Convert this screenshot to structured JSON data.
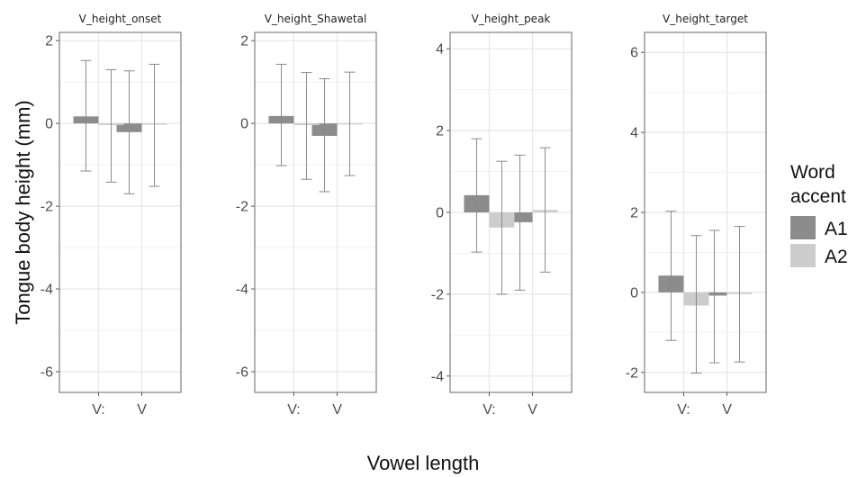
{
  "chart_data": {
    "type": "bar",
    "xlabel": "Vowel length",
    "ylabel": "Tongue body height (mm)",
    "categories": [
      "V:",
      "V"
    ],
    "legend": {
      "title_lines": [
        "Word",
        "accent"
      ],
      "position": "right",
      "entries": [
        {
          "name": "A1",
          "color": "#8c8c8c"
        },
        {
          "name": "A2",
          "color": "#cccccc"
        }
      ]
    },
    "grid": true,
    "panels": [
      {
        "title": "V_height_onset",
        "ylim": [
          -6.5,
          2.2
        ],
        "yticks": [
          2,
          0,
          -2,
          -4,
          -6
        ],
        "series": [
          {
            "name": "A1",
            "values": [
              0.17,
              -0.21
            ],
            "err_low": [
              -1.15,
              -1.7
            ],
            "err_high": [
              1.52,
              1.27
            ]
          },
          {
            "name": "A2",
            "values": [
              -0.04,
              -0.03
            ],
            "err_low": [
              -1.42,
              -1.52
            ],
            "err_high": [
              1.3,
              1.43
            ]
          }
        ]
      },
      {
        "title": "V_height_Shawetal",
        "ylim": [
          -6.5,
          2.2
        ],
        "yticks": [
          2,
          0,
          -2,
          -4,
          -6
        ],
        "series": [
          {
            "name": "A1",
            "values": [
              0.18,
              -0.3
            ],
            "err_low": [
              -1.02,
              -1.65
            ],
            "err_high": [
              1.43,
              1.08
            ]
          },
          {
            "name": "A2",
            "values": [
              -0.04,
              -0.02
            ],
            "err_low": [
              -1.35,
              -1.26
            ],
            "err_high": [
              1.23,
              1.24
            ]
          }
        ]
      },
      {
        "title": "V_height_peak",
        "ylim": [
          -4.4,
          4.4
        ],
        "yticks": [
          4,
          2,
          0,
          -2,
          -4
        ],
        "series": [
          {
            "name": "A1",
            "values": [
              0.42,
              -0.24
            ],
            "err_low": [
              -0.97,
              -1.9
            ],
            "err_high": [
              1.8,
              1.4
            ]
          },
          {
            "name": "A2",
            "values": [
              -0.37,
              0.06
            ],
            "err_low": [
              -2.0,
              -1.46
            ],
            "err_high": [
              1.25,
              1.58
            ]
          }
        ]
      },
      {
        "title": "V_height_target",
        "ylim": [
          -2.5,
          6.5
        ],
        "yticks": [
          6,
          4,
          2,
          0,
          -2
        ],
        "series": [
          {
            "name": "A1",
            "values": [
              0.42,
              -0.08
            ],
            "err_low": [
              -1.2,
              -1.76
            ],
            "err_high": [
              2.03,
              1.55
            ]
          },
          {
            "name": "A2",
            "values": [
              -0.33,
              -0.04
            ],
            "err_low": [
              -2.02,
              -1.74
            ],
            "err_high": [
              1.42,
              1.65
            ]
          }
        ]
      }
    ]
  }
}
